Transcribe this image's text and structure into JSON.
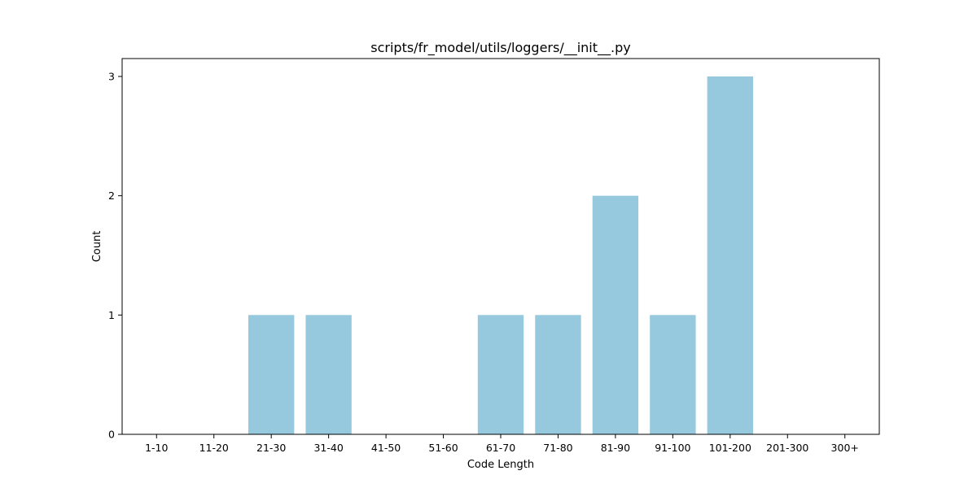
{
  "chart_data": {
    "type": "bar",
    "title": "scripts/fr_model/utils/loggers/__init__.py",
    "xlabel": "Code Length",
    "ylabel": "Count",
    "categories": [
      "1-10",
      "11-20",
      "21-30",
      "31-40",
      "41-50",
      "51-60",
      "61-70",
      "71-80",
      "81-90",
      "91-100",
      "101-200",
      "201-300",
      "300+"
    ],
    "values": [
      0,
      0,
      1,
      1,
      0,
      0,
      1,
      1,
      2,
      1,
      3,
      0,
      0
    ],
    "yticks": [
      "0",
      "1",
      "2",
      "3"
    ],
    "ylim": [
      0,
      3.15
    ],
    "bar_color": "#96c9dd",
    "grid": false,
    "legend": "none"
  }
}
